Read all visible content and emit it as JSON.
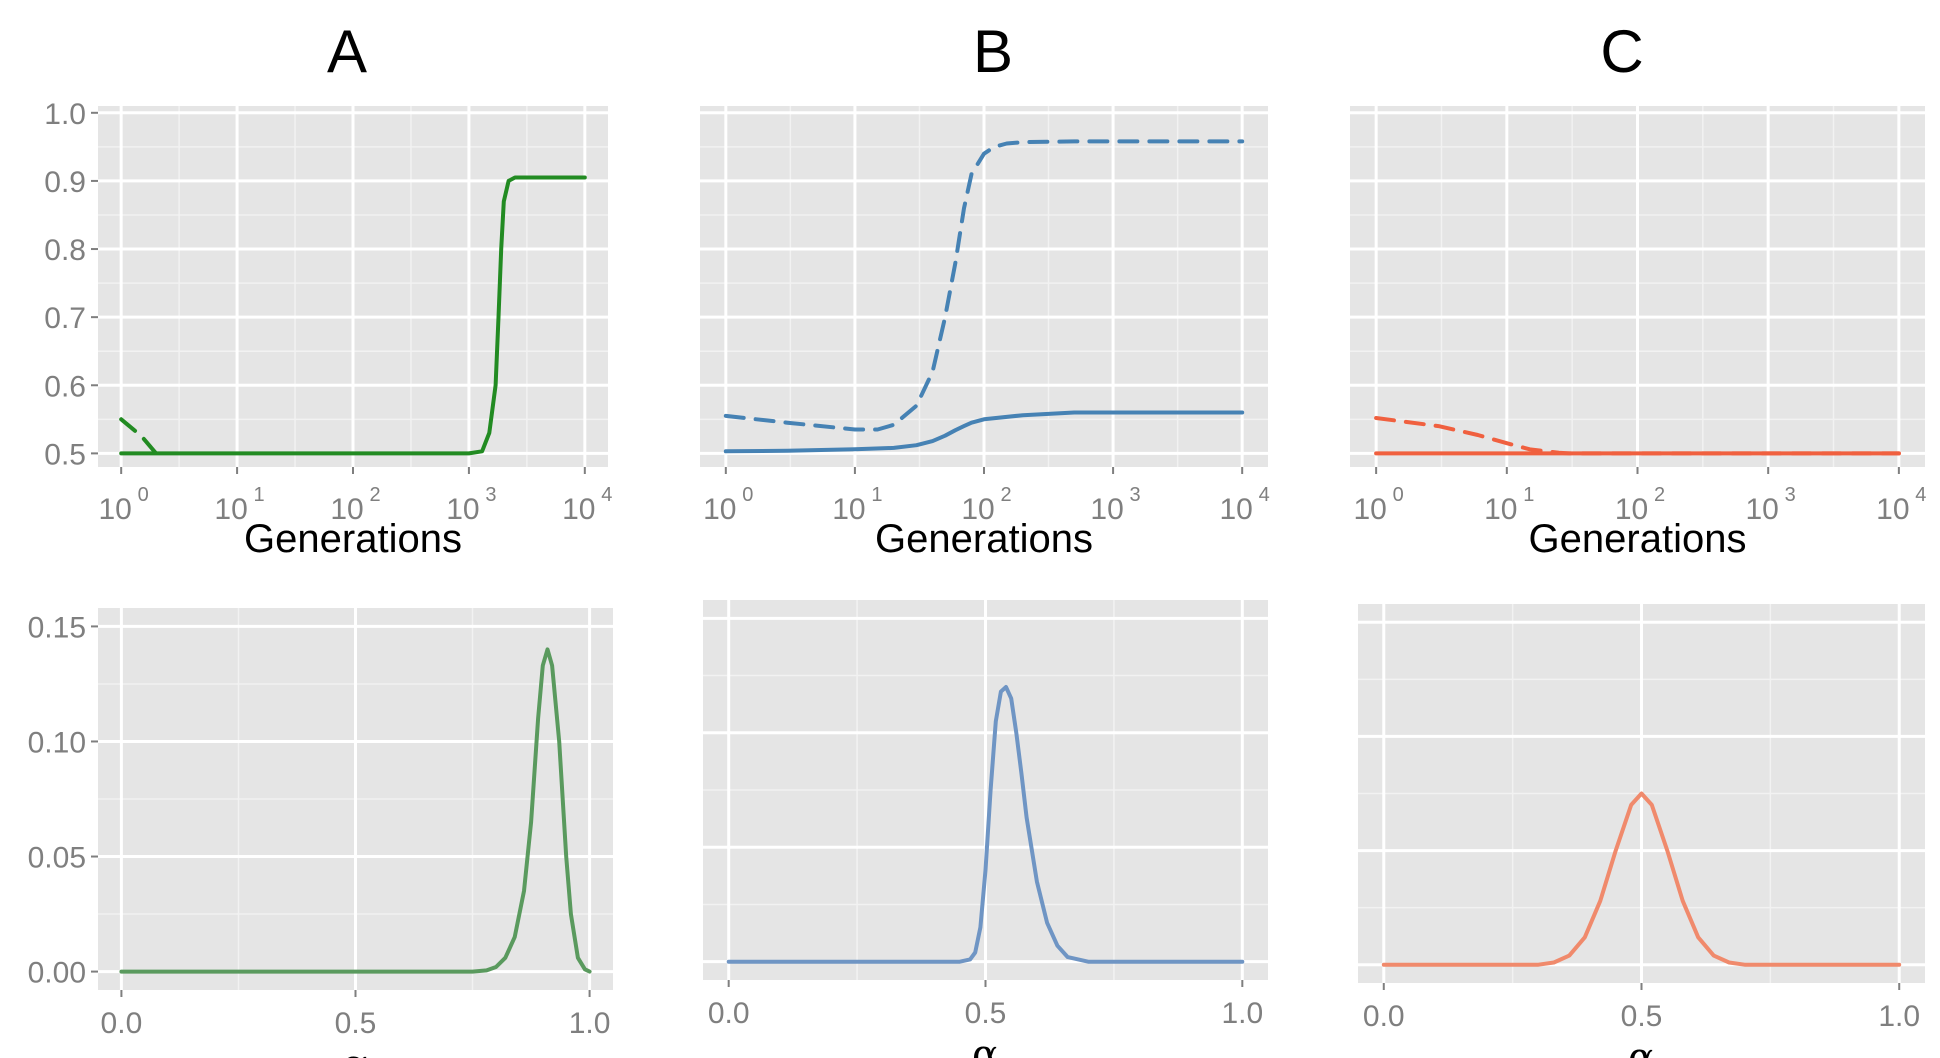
{
  "panels": {
    "labels": [
      "A",
      "B",
      "C"
    ]
  },
  "colors": {
    "A": "#228B22",
    "B": "#4682B4",
    "C": "#F0603F",
    "A_density": "#5A9A5E",
    "B_density": "#6F95C4",
    "C_density": "#F08A6C",
    "panel_bg": "#E5E5E5",
    "grid_major": "#FFFFFF",
    "grid_minor": "#F2F2F2",
    "tick_text": "#7F7F7F"
  },
  "chart_data": [
    {
      "id": "A-top",
      "type": "line",
      "title": "A",
      "xlabel": "Generations",
      "ylabel": "",
      "xscale": "log10",
      "xlim": [
        1,
        10000
      ],
      "ylim": [
        0.48,
        1.01
      ],
      "xticks": [
        {
          "base": "10",
          "exp": "0"
        },
        {
          "base": "10",
          "exp": "1"
        },
        {
          "base": "10",
          "exp": "2"
        },
        {
          "base": "10",
          "exp": "3"
        },
        {
          "base": "10",
          "exp": "4"
        }
      ],
      "yticks": [
        "0.5",
        "0.6",
        "0.7",
        "0.8",
        "0.9",
        "1.0"
      ],
      "show_y_tick_labels": true,
      "grid": true,
      "series": [
        {
          "style": "solid",
          "x": [
            1,
            10,
            100,
            1000,
            1300,
            1500,
            1700,
            1800,
            1900,
            2000,
            2200,
            2500,
            3000,
            10000
          ],
          "y": [
            0.5,
            0.5,
            0.5,
            0.5,
            0.503,
            0.53,
            0.6,
            0.7,
            0.8,
            0.87,
            0.9,
            0.905,
            0.905,
            0.905
          ]
        },
        {
          "style": "dashed",
          "x": [
            1,
            1.5,
            2
          ],
          "y": [
            0.55,
            0.525,
            0.5
          ]
        }
      ]
    },
    {
      "id": "B-top",
      "type": "line",
      "title": "B",
      "xlabel": "Generations",
      "ylabel": "",
      "xscale": "log10",
      "xlim": [
        1,
        10000
      ],
      "ylim": [
        0.48,
        1.01
      ],
      "xticks": [
        {
          "base": "10",
          "exp": "0"
        },
        {
          "base": "10",
          "exp": "1"
        },
        {
          "base": "10",
          "exp": "2"
        },
        {
          "base": "10",
          "exp": "3"
        },
        {
          "base": "10",
          "exp": "4"
        }
      ],
      "show_y_tick_labels": false,
      "grid": true,
      "series": [
        {
          "style": "solid",
          "x": [
            1,
            3,
            10,
            20,
            30,
            40,
            50,
            60,
            70,
            80,
            100,
            200,
            500,
            1000,
            10000
          ],
          "y": [
            0.503,
            0.504,
            0.506,
            0.508,
            0.512,
            0.518,
            0.526,
            0.534,
            0.54,
            0.545,
            0.55,
            0.556,
            0.56,
            0.56,
            0.56
          ]
        },
        {
          "style": "dashed",
          "x": [
            1,
            3,
            10,
            15,
            20,
            30,
            40,
            50,
            60,
            70,
            80,
            100,
            120,
            150,
            200,
            500,
            1000,
            10000
          ],
          "y": [
            0.555,
            0.545,
            0.535,
            0.535,
            0.542,
            0.57,
            0.62,
            0.7,
            0.78,
            0.86,
            0.91,
            0.94,
            0.95,
            0.955,
            0.957,
            0.958,
            0.958,
            0.958
          ]
        }
      ]
    },
    {
      "id": "C-top",
      "type": "line",
      "title": "C",
      "xlabel": "Generations",
      "ylabel": "",
      "xscale": "log10",
      "xlim": [
        1,
        10000
      ],
      "ylim": [
        0.48,
        1.01
      ],
      "xticks": [
        {
          "base": "10",
          "exp": "0"
        },
        {
          "base": "10",
          "exp": "1"
        },
        {
          "base": "10",
          "exp": "2"
        },
        {
          "base": "10",
          "exp": "3"
        },
        {
          "base": "10",
          "exp": "4"
        }
      ],
      "show_y_tick_labels": false,
      "grid": true,
      "series": [
        {
          "style": "solid",
          "x": [
            1,
            10,
            100,
            1000,
            10000
          ],
          "y": [
            0.5,
            0.5,
            0.5,
            0.5,
            0.5
          ]
        },
        {
          "style": "dashed",
          "x": [
            1,
            3,
            6,
            10,
            15,
            20,
            25,
            30,
            50,
            100,
            1000,
            10000
          ],
          "y": [
            0.552,
            0.54,
            0.527,
            0.515,
            0.506,
            0.503,
            0.501,
            0.5,
            0.5,
            0.5,
            0.5,
            0.5
          ]
        }
      ]
    },
    {
      "id": "A-bottom",
      "type": "line",
      "title": "",
      "xlabel": "α",
      "ylabel": "",
      "xlim": [
        -0.05,
        1.05
      ],
      "ylim": [
        -0.008,
        0.158
      ],
      "xticks": [
        "0.0",
        "0.5",
        "1.0"
      ],
      "yticks": [
        "0.00",
        "0.05",
        "0.10",
        "0.15"
      ],
      "show_y_tick_labels": true,
      "grid": true,
      "series": [
        {
          "style": "solid",
          "x": [
            0,
            0.5,
            0.75,
            0.78,
            0.8,
            0.82,
            0.84,
            0.86,
            0.875,
            0.89,
            0.9,
            0.91,
            0.92,
            0.935,
            0.95,
            0.96,
            0.975,
            0.99,
            1.0
          ],
          "y": [
            0,
            0,
            0,
            0.0005,
            0.002,
            0.006,
            0.015,
            0.035,
            0.065,
            0.11,
            0.133,
            0.14,
            0.133,
            0.1,
            0.05,
            0.025,
            0.006,
            0.001,
            0
          ]
        }
      ]
    },
    {
      "id": "B-bottom",
      "type": "line",
      "title": "",
      "xlabel": "α",
      "ylabel": "",
      "xlim": [
        -0.05,
        1.05
      ],
      "ylim": [
        -0.008,
        0.158
      ],
      "xticks": [
        "0.0",
        "0.5",
        "1.0"
      ],
      "show_y_tick_labels": false,
      "grid": true,
      "series": [
        {
          "style": "solid",
          "x": [
            0,
            0.45,
            0.47,
            0.48,
            0.49,
            0.5,
            0.51,
            0.52,
            0.53,
            0.54,
            0.55,
            0.56,
            0.57,
            0.58,
            0.6,
            0.62,
            0.64,
            0.66,
            0.7,
            1.0
          ],
          "y": [
            0,
            0,
            0.001,
            0.004,
            0.015,
            0.04,
            0.075,
            0.105,
            0.118,
            0.12,
            0.115,
            0.1,
            0.082,
            0.063,
            0.035,
            0.017,
            0.007,
            0.002,
            0,
            0
          ]
        }
      ]
    },
    {
      "id": "C-bottom",
      "type": "line",
      "title": "",
      "xlabel": "α",
      "ylabel": "",
      "xlim": [
        -0.05,
        1.05
      ],
      "ylim": [
        -0.008,
        0.158
      ],
      "xticks": [
        "0.0",
        "0.5",
        "1.0"
      ],
      "show_y_tick_labels": false,
      "grid": true,
      "series": [
        {
          "style": "solid",
          "x": [
            0,
            0.3,
            0.33,
            0.36,
            0.39,
            0.42,
            0.45,
            0.48,
            0.5,
            0.52,
            0.55,
            0.58,
            0.61,
            0.64,
            0.67,
            0.7,
            1.0
          ],
          "y": [
            0,
            0,
            0.001,
            0.004,
            0.012,
            0.028,
            0.05,
            0.07,
            0.075,
            0.07,
            0.05,
            0.028,
            0.012,
            0.004,
            0.001,
            0,
            0
          ]
        }
      ]
    }
  ]
}
